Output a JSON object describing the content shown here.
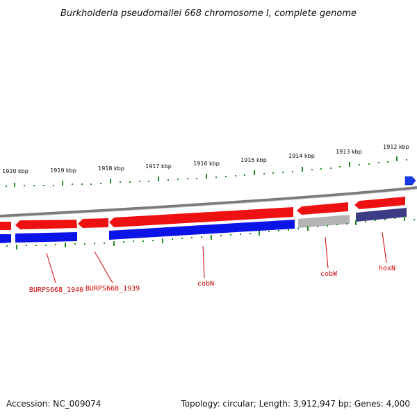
{
  "title": "Burkholderia pseudomallei 668 chromosome I, complete genome",
  "accession": "Accession: NC_009074",
  "topology": "Topology: circular; Length: 3,912,947 bp; Genes: 4,000",
  "colors": {
    "forward": "#ee0000",
    "reverse": "#0000dd",
    "pseudo": "#b0b0b0",
    "hypothetical": "#3a3a80",
    "backbone": "#888888",
    "tick": "#228b22",
    "label": "#cc0000"
  },
  "ticks": [
    "1920 kbp",
    "1919 kbp",
    "1918 kbp",
    "1917 kbp",
    "1916 kbp",
    "1915 kbp",
    "1914 kbp",
    "1913 kbp",
    "1912 kbp"
  ],
  "gene_labels": [
    "BURPS668_1940",
    "BURPS668_1939",
    "cobN",
    "cobW",
    "hoxN"
  ]
}
